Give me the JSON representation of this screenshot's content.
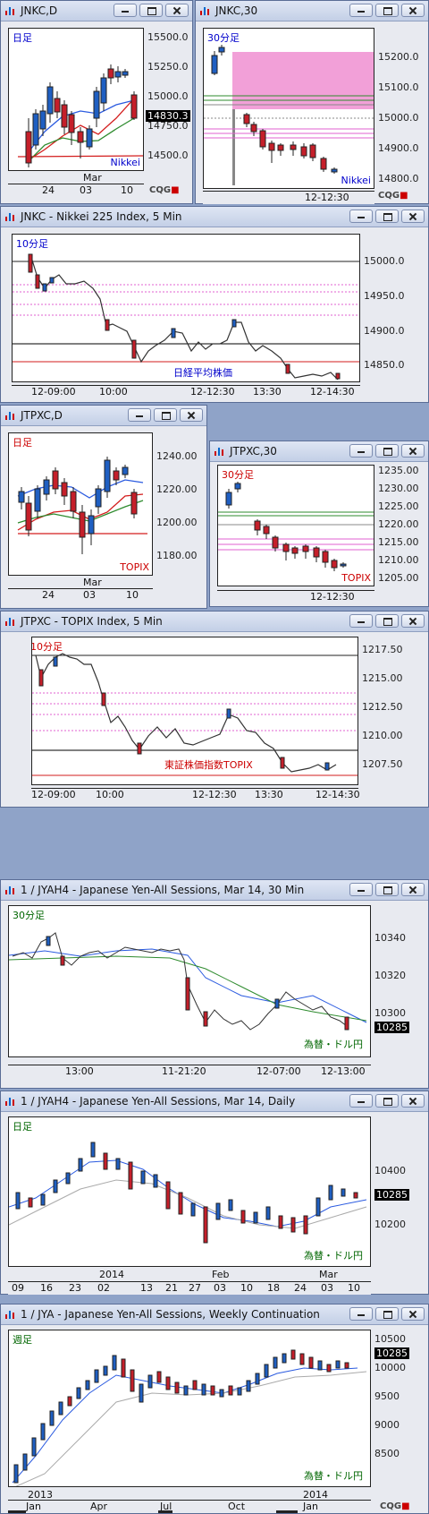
{
  "colors": {
    "up": "#1f5fc2",
    "down": "#c51f2a",
    "ma_blue": "#2b5be0",
    "ma_red": "#d31d1d",
    "ma_green": "#2e8b2e",
    "pink": "#e060d0",
    "black": "#000"
  },
  "logo": {
    "main": "CQG",
    "mark": "■"
  },
  "windows": [
    {
      "id": "w1",
      "title": "JNKC,D",
      "label": "日足",
      "label_color": "#0000cc",
      "corner": "Nikkei",
      "corner_color": "#0000cc",
      "price_box": "14830.3",
      "yticks": [
        "15500.0",
        "15250.0",
        "15000.0",
        "14750.0",
        "14500.0"
      ],
      "xticks": [
        "24",
        "03",
        "10"
      ],
      "xtop": [
        "Mar"
      ]
    },
    {
      "id": "w2",
      "title": "JNKC,30",
      "label": "30分足",
      "label_color": "#0000cc",
      "corner": "Nikkei",
      "corner_color": "#0000cc",
      "yticks": [
        "15200.0",
        "15100.0",
        "15000.0",
        "14900.0",
        "14800.0"
      ],
      "xticks": [
        "12-12:30"
      ]
    },
    {
      "id": "w3",
      "title": "JNKC - Nikkei 225 Index, 5 Min",
      "label": "10分足",
      "label_color": "#0000cc",
      "corner": "日経平均株価",
      "corner_color": "#0000cc",
      "yticks": [
        "15000.0",
        "14950.0",
        "14900.0",
        "14850.0"
      ],
      "xticks": [
        "12-09:00",
        "10:00",
        "12-12:30",
        "13:30",
        "12-14:30"
      ]
    },
    {
      "id": "w4",
      "title": "JTPXC,D",
      "label": "日足",
      "label_color": "#cc0000",
      "corner": "TOPIX",
      "corner_color": "#cc0000",
      "yticks": [
        "1240.00",
        "1220.00",
        "1200.00",
        "1180.00"
      ],
      "xticks": [
        "24",
        "03",
        "10"
      ],
      "xtop": [
        "Mar"
      ]
    },
    {
      "id": "w5",
      "title": "JTPXC,30",
      "label": "30分足",
      "label_color": "#cc0000",
      "corner": "TOPIX",
      "corner_color": "#cc0000",
      "yticks": [
        "1235.00",
        "1230.00",
        "1225.00",
        "1220.00",
        "1215.00",
        "1210.00",
        "1205.00"
      ],
      "xticks": [
        "12-12:30"
      ]
    },
    {
      "id": "w6",
      "title": "JTPXC - TOPIX Index, 5 Min",
      "label": "10分足",
      "label_color": "#cc0000",
      "corner": "東証株価指数TOPIX",
      "corner_color": "#cc0000",
      "yticks": [
        "1217.50",
        "1215.00",
        "1212.50",
        "1210.00",
        "1207.50"
      ],
      "xticks": [
        "12-09:00",
        "10:00",
        "12-12:30",
        "13:30",
        "12-14:30"
      ]
    },
    {
      "id": "w7",
      "title": "1 / JYAH4 - Japanese Yen-All Sessions, Mar 14, 30 Min",
      "label": "30分足",
      "label_color": "#006600",
      "corner": "為替・ドル円",
      "corner_color": "#006600",
      "price_box": "10285",
      "yticks": [
        "10340",
        "10320",
        "10300"
      ],
      "xticks": [
        "13:00",
        "11-21:20",
        "12-07:00",
        "12-13:00"
      ]
    },
    {
      "id": "w8",
      "title": "1 / JYAH4 - Japanese Yen-All Sessions, Mar 14, Daily",
      "label": "日足",
      "label_color": "#006600",
      "corner": "為替・ドル円",
      "corner_color": "#006600",
      "price_box": "10285",
      "yticks": [
        "10400",
        "10200"
      ],
      "xticks": [
        "09",
        "16",
        "23",
        "02",
        "13",
        "21",
        "27",
        "03",
        "10",
        "18",
        "24",
        "03",
        "10"
      ],
      "xtop": [
        "2014",
        "Feb",
        "Mar"
      ]
    },
    {
      "id": "w9",
      "title": "1 / JYA - Japanese Yen-All Sessions, Weekly Continuation",
      "label": "週足",
      "label_color": "#006600",
      "corner": "為替・ドル円",
      "corner_color": "#006600",
      "price_box": "10285",
      "yticks": [
        "10500",
        "10000",
        "9500",
        "9000",
        "8500"
      ],
      "xticks": [
        "Jan",
        "Apr",
        "Jul",
        "Oct",
        "Jan"
      ],
      "xtop": [
        "2013",
        "2014"
      ]
    }
  ]
}
